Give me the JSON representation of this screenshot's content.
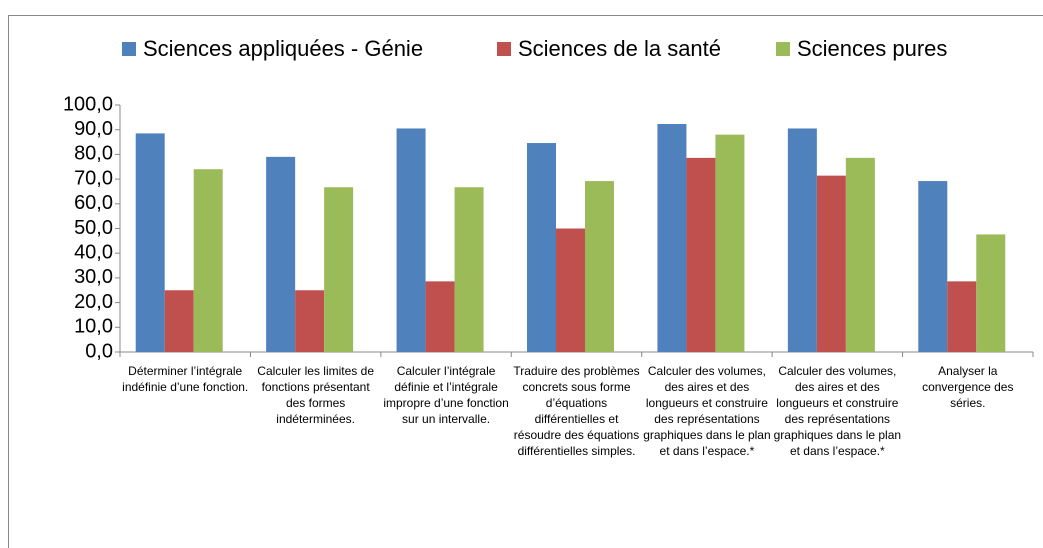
{
  "chart_data": {
    "type": "bar",
    "categories": [
      "Déterminer l’intégrale indéfinie d’une fonction.",
      "Calculer les limites de fonctions présentant des formes indéterminées.",
      "Calculer l’intégrale définie et l’intégrale impropre d’une fonction sur un intervalle.",
      "Traduire des problèmes concrets sous forme d’équations différentielles et résoudre des équations différentielles simples.",
      "Calculer des volumes, des aires et des longueurs et construire des représentations graphiques dans le plan et dans l’espace.*",
      "Calculer des volumes, des aires et des longueurs et construire des représentations graphiques dans le plan et dans l’espace.*",
      "Analyser la convergence des séries."
    ],
    "series": [
      {
        "name": "Sciences appliquées - Génie",
        "color": "#4f81bd",
        "values": [
          88.5,
          79,
          90.5,
          84.6,
          92.3,
          90.5,
          69.2
        ]
      },
      {
        "name": "Sciences de la santé",
        "color": "#c0504d",
        "values": [
          25,
          25,
          28.6,
          50,
          78.6,
          71.4,
          28.6
        ]
      },
      {
        "name": "Sciences pures",
        "color": "#9bbb59",
        "values": [
          74,
          66.7,
          66.7,
          69.2,
          88,
          78.6,
          47.6
        ]
      }
    ],
    "ylim": [
      0,
      100
    ],
    "yticks": [
      {
        "value": 0,
        "label": "0,0"
      },
      {
        "value": 10,
        "label": "10,0"
      },
      {
        "value": 20,
        "label": "20,0"
      },
      {
        "value": 30,
        "label": "30,0"
      },
      {
        "value": 40,
        "label": "40,0"
      },
      {
        "value": 50,
        "label": "50,0"
      },
      {
        "value": 60,
        "label": "60,0"
      },
      {
        "value": 70,
        "label": "70,0"
      },
      {
        "value": 80,
        "label": "80,0"
      },
      {
        "value": 90,
        "label": "90,0"
      },
      {
        "value": 100,
        "label": "100,0"
      }
    ],
    "legend": "top"
  }
}
